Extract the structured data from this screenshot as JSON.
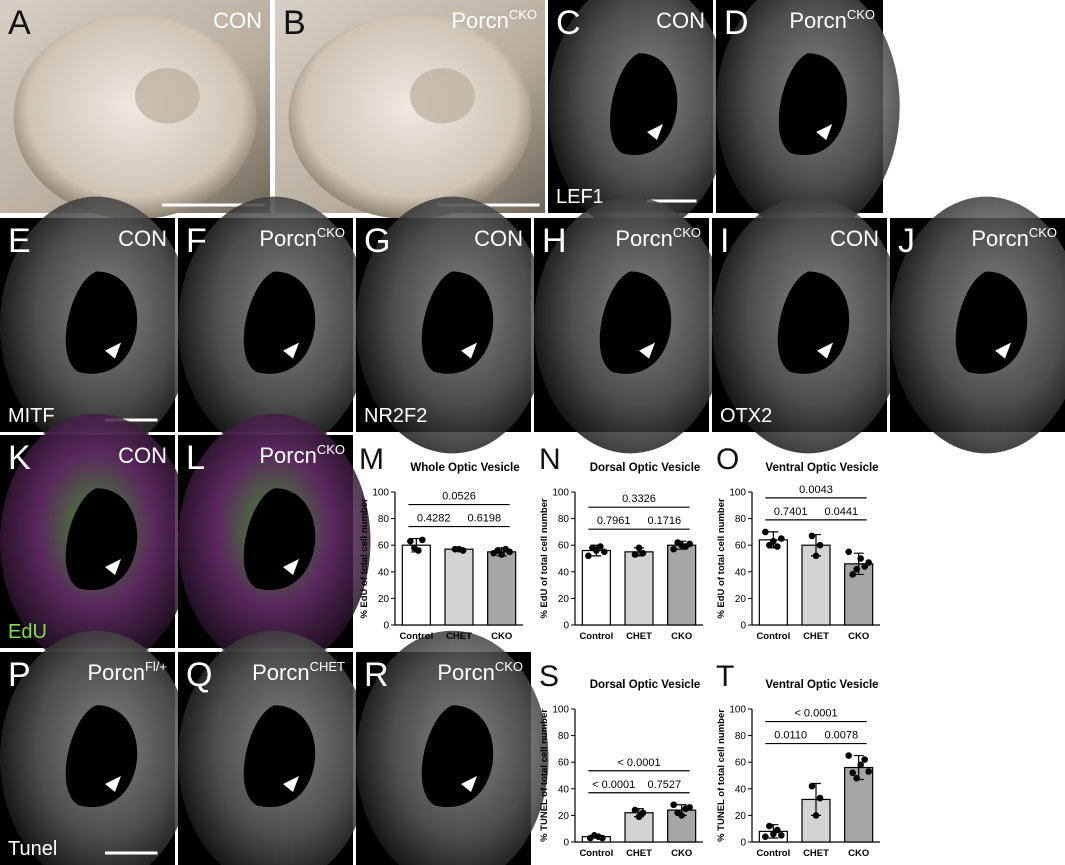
{
  "panels": [
    {
      "letter": "A",
      "label": "CON"
    },
    {
      "letter": "B",
      "label": {
        "text": "Porcn",
        "sup": "CKO"
      }
    },
    {
      "letter": "C",
      "label": "CON",
      "stain": "LEF1"
    },
    {
      "letter": "D",
      "label": {
        "text": "Porcn",
        "sup": "CKO"
      }
    },
    {
      "letter": "E",
      "label": "CON",
      "stain": "MITF"
    },
    {
      "letter": "F",
      "label": {
        "text": "Porcn",
        "sup": "CKO"
      }
    },
    {
      "letter": "G",
      "label": "CON",
      "stain": "NR2F2"
    },
    {
      "letter": "H",
      "label": {
        "text": "Porcn",
        "sup": "CKO"
      }
    },
    {
      "letter": "I",
      "label": "CON",
      "stain": "OTX2"
    },
    {
      "letter": "J",
      "label": {
        "text": "Porcn",
        "sup": "CKO"
      }
    },
    {
      "letter": "K",
      "label": "CON",
      "stain": "EdU"
    },
    {
      "letter": "L",
      "label": {
        "text": "Porcn",
        "sup": "CKO"
      }
    },
    {
      "letter": "P",
      "label": {
        "text": "Porcn",
        "sup": "Fl/+"
      },
      "stain": "Tunel"
    },
    {
      "letter": "Q",
      "label": {
        "text": "Porcn",
        "sup": "CHET"
      }
    },
    {
      "letter": "R",
      "label": {
        "text": "Porcn",
        "sup": "CKO"
      }
    }
  ],
  "chart_data": [
    {
      "type": "bar",
      "letter": "M",
      "title": "Whole Optic Vesicle",
      "y_label": "% EdU of total cell number",
      "categories": [
        "Control",
        "CHET",
        "CKO"
      ],
      "values": [
        60,
        57,
        55
      ],
      "errors": [
        5,
        1,
        3
      ],
      "points": [
        [
          63,
          58,
          56,
          64
        ],
        [
          57,
          57,
          56
        ],
        [
          54,
          56,
          53,
          57,
          55
        ]
      ],
      "colors": [
        "#ffffff",
        "#d3d3d3",
        "#a6a6a6"
      ],
      "ylim": [
        0,
        100
      ],
      "yticks": [
        0,
        20,
        40,
        60,
        80,
        100
      ],
      "comparisons": [
        {
          "between": [
            "Control",
            "CHET"
          ],
          "label": "0.4282"
        },
        {
          "between": [
            "CHET",
            "CKO"
          ],
          "label": "0.6198"
        },
        {
          "between": [
            "Control",
            "CKO"
          ],
          "label": "0.0526"
        }
      ]
    },
    {
      "type": "bar",
      "letter": "N",
      "title": "Dorsal Optic Vesicle",
      "y_label": "% EdU of total cell number",
      "categories": [
        "Control",
        "CHET",
        "CKO"
      ],
      "values": [
        56,
        55,
        60
      ],
      "errors": [
        4,
        3,
        3
      ],
      "points": [
        [
          52,
          58,
          56,
          59,
          55
        ],
        [
          53,
          58,
          54
        ],
        [
          57,
          62,
          60,
          59,
          61
        ]
      ],
      "colors": [
        "#ffffff",
        "#d3d3d3",
        "#a6a6a6"
      ],
      "ylim": [
        0,
        100
      ],
      "yticks": [
        0,
        20,
        40,
        60,
        80,
        100
      ],
      "comparisons": [
        {
          "between": [
            "Control",
            "CHET"
          ],
          "label": "0.7961"
        },
        {
          "between": [
            "CHET",
            "CKO"
          ],
          "label": "0.1716"
        },
        {
          "between": [
            "Control",
            "CKO"
          ],
          "label": "0.3326"
        }
      ]
    },
    {
      "type": "bar",
      "letter": "O",
      "title": "Ventral Optic Vesicle",
      "y_label": "% EdU of total cell number",
      "categories": [
        "Control",
        "CHET",
        "CKO"
      ],
      "values": [
        64,
        60,
        46
      ],
      "errors": [
        6,
        8,
        8
      ],
      "points": [
        [
          70,
          60,
          63,
          59,
          65
        ],
        [
          67,
          52,
          60
        ],
        [
          55,
          38,
          42,
          50,
          44,
          47
        ]
      ],
      "colors": [
        "#ffffff",
        "#d3d3d3",
        "#a6a6a6"
      ],
      "ylim": [
        0,
        100
      ],
      "yticks": [
        0,
        20,
        40,
        60,
        80,
        100
      ],
      "comparisons": [
        {
          "between": [
            "Control",
            "CHET"
          ],
          "label": "0.7401"
        },
        {
          "between": [
            "CHET",
            "CKO"
          ],
          "label": "0.0441"
        },
        {
          "between": [
            "Control",
            "CKO"
          ],
          "label": "0.0043"
        }
      ]
    },
    {
      "type": "bar",
      "letter": "S",
      "title": "Dorsal Optic Vesicle",
      "y_label": "% TUNEL of total cell number",
      "categories": [
        "Control",
        "CHET",
        "CKO"
      ],
      "values": [
        4,
        22,
        24
      ],
      "errors": [
        1,
        3,
        4
      ],
      "points": [
        [
          3,
          5,
          4,
          3
        ],
        [
          24,
          19,
          22
        ],
        [
          28,
          22,
          20,
          25,
          26
        ]
      ],
      "colors": [
        "#ffffff",
        "#d3d3d3",
        "#a6a6a6"
      ],
      "ylim": [
        0,
        100
      ],
      "yticks": [
        0,
        20,
        40,
        60,
        80,
        100
      ],
      "comparisons": [
        {
          "between": [
            "Control",
            "CHET"
          ],
          "label": "< 0.0001"
        },
        {
          "between": [
            "Control",
            "CKO"
          ],
          "label": "< 0.0001"
        },
        {
          "between": [
            "CHET",
            "CKO"
          ],
          "label": "0.7527"
        }
      ]
    },
    {
      "type": "bar",
      "letter": "T",
      "title": "Ventral Optic Vesicle",
      "y_label": "% TUNEL of total cell number",
      "categories": [
        "Control",
        "CHET",
        "CKO"
      ],
      "values": [
        8,
        32,
        56
      ],
      "errors": [
        5,
        12,
        9
      ],
      "points": [
        [
          4,
          12,
          6,
          9,
          5
        ],
        [
          42,
          20,
          33
        ],
        [
          65,
          52,
          48,
          58,
          62,
          53
        ]
      ],
      "colors": [
        "#ffffff",
        "#d3d3d3",
        "#a6a6a6"
      ],
      "ylim": [
        0,
        100
      ],
      "yticks": [
        0,
        20,
        40,
        60,
        80,
        100
      ],
      "comparisons": [
        {
          "between": [
            "Control",
            "CHET"
          ],
          "label": "0.0110"
        },
        {
          "between": [
            "Control",
            "CKO"
          ],
          "label": "< 0.0001"
        },
        {
          "between": [
            "CHET",
            "CKO"
          ],
          "label": "0.0078"
        }
      ]
    }
  ]
}
